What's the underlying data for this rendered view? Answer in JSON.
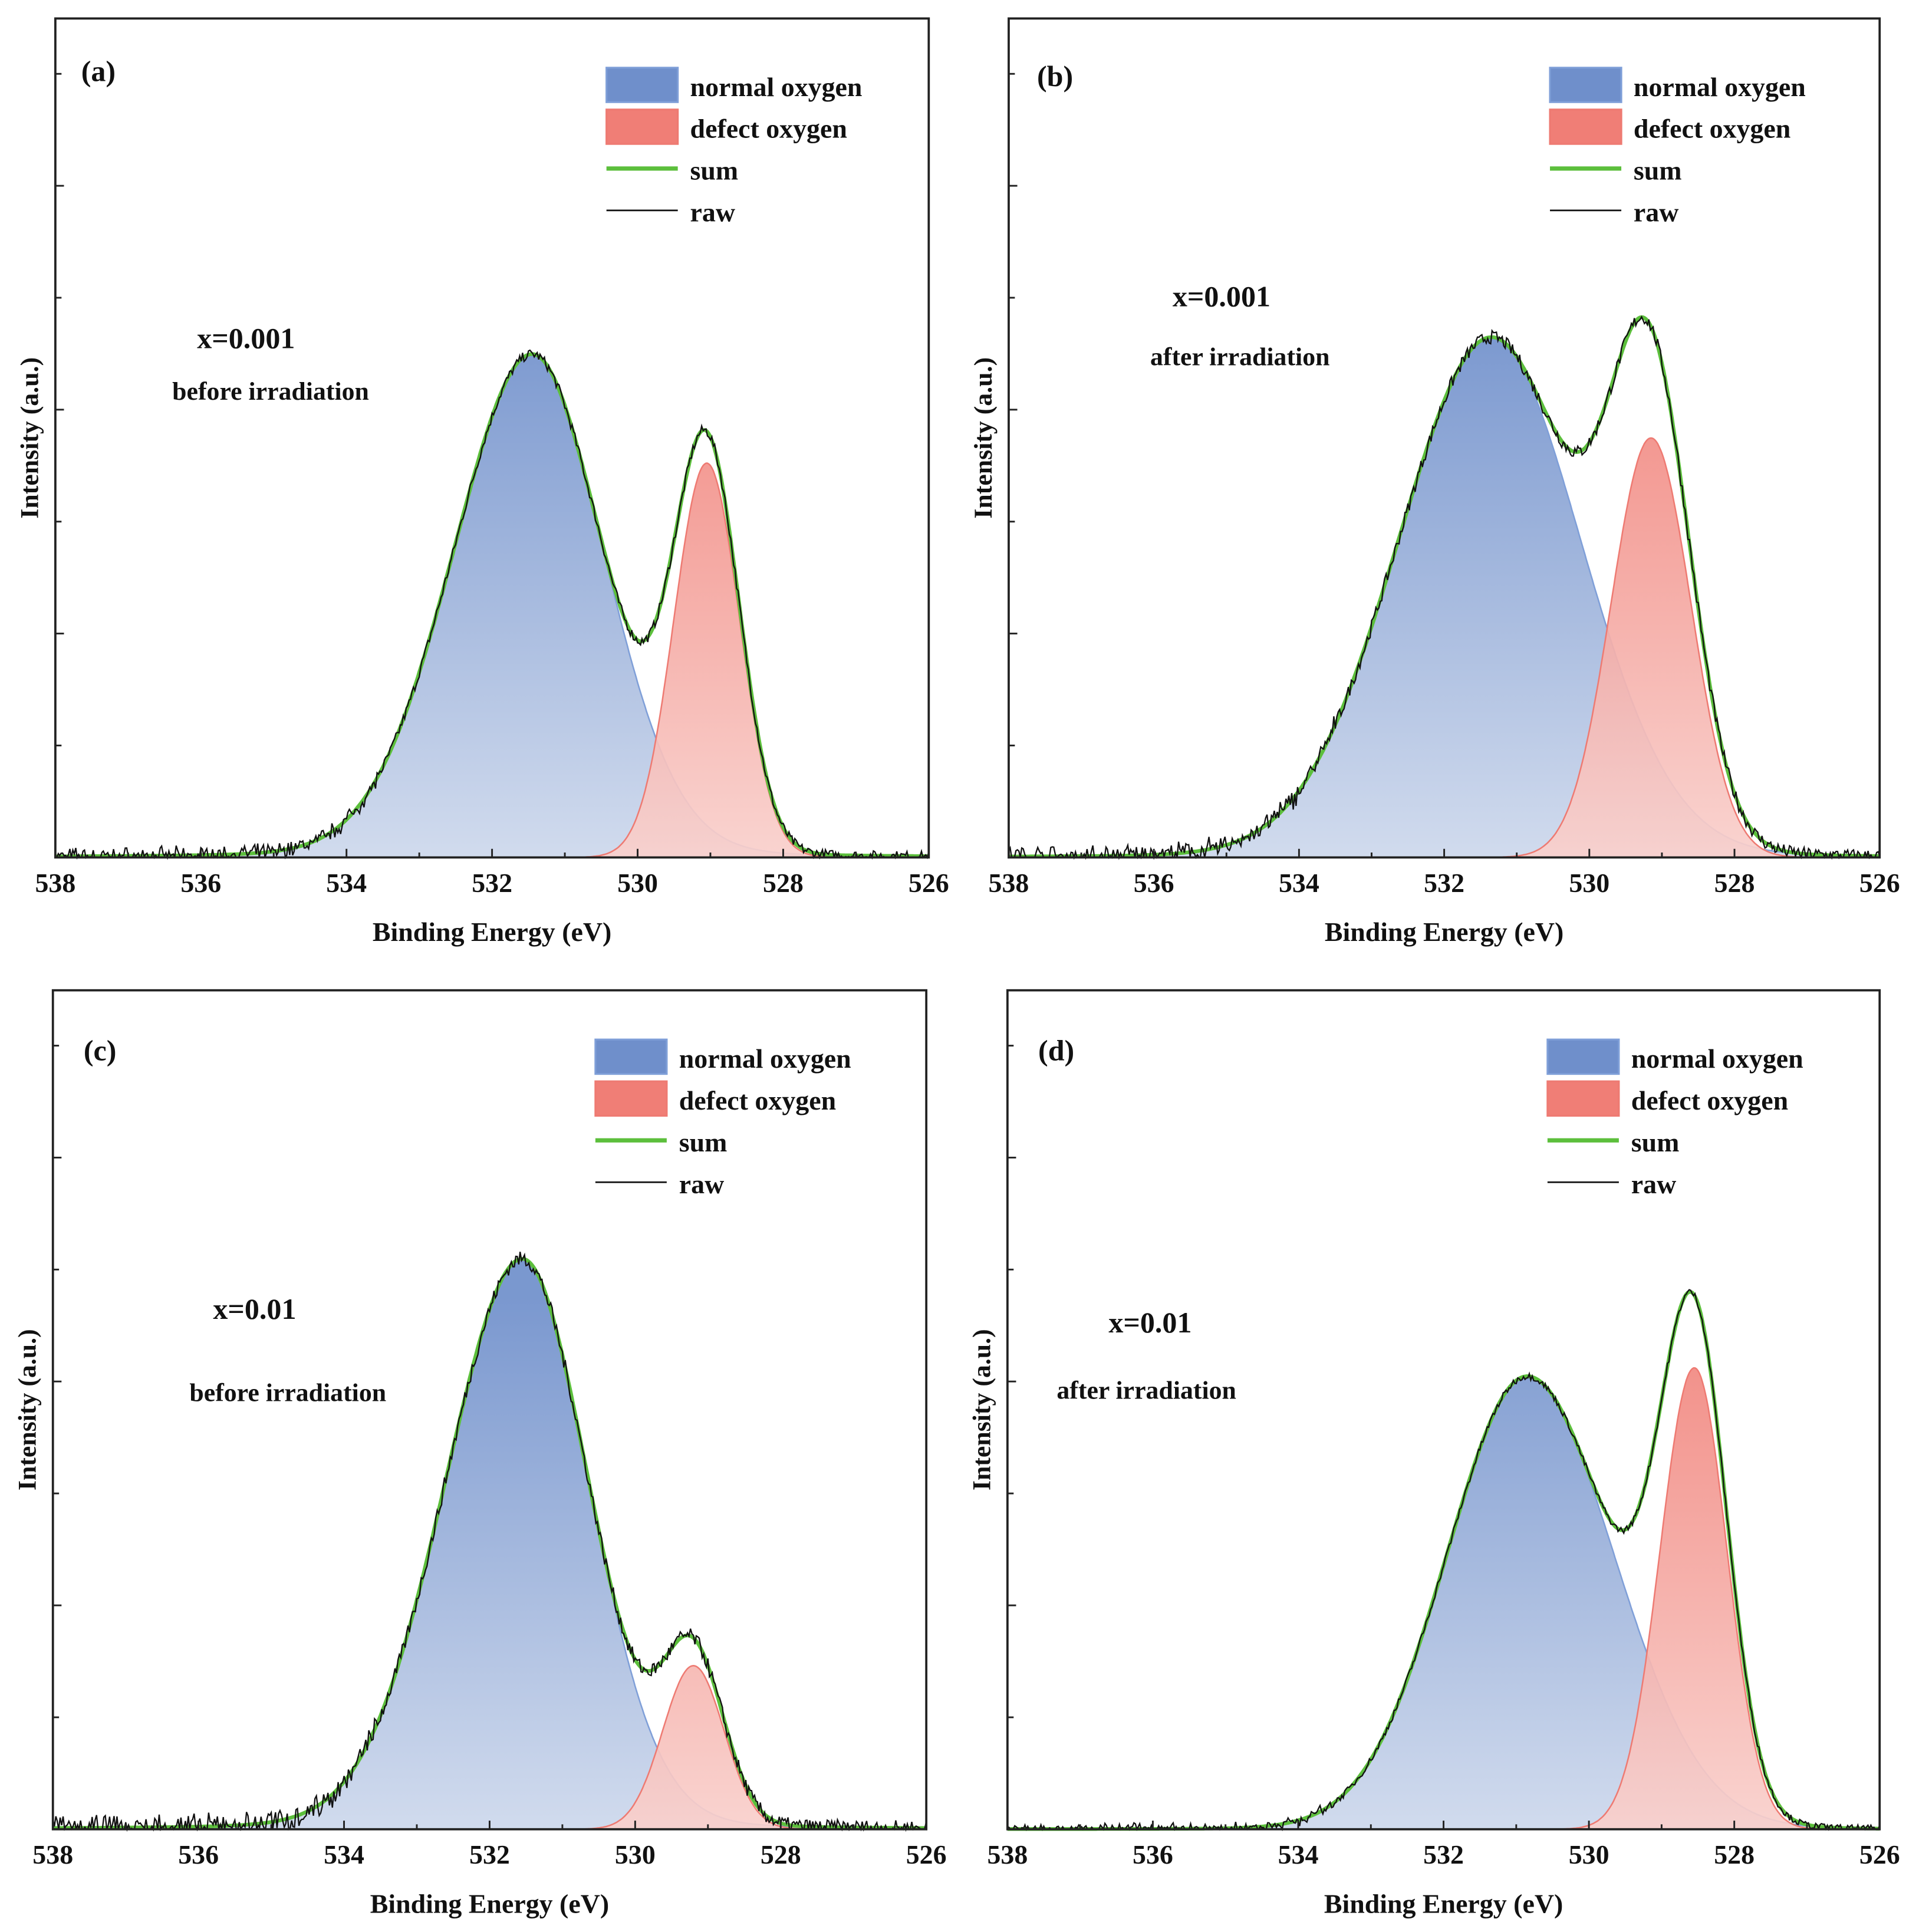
{
  "colors": {
    "normal_top": "#6f8fcb",
    "normal_bottom": "#cdd8ec",
    "normal_edge": "#7f9fd8",
    "defect_top": "#f07e76",
    "defect_bottom": "#f9d0cc",
    "defect_edge": "#ee7a72",
    "sum": "#5cbf3c",
    "raw": "#111111",
    "axis": "#222222"
  },
  "chart_data": [
    {
      "type": "area",
      "panel_label": "(a)",
      "composition": "x=0.001",
      "condition": "before irradiation",
      "xlabel": "Binding Energy (eV)",
      "ylabel": "Intensity (a.u.)",
      "xlim": [
        538,
        526
      ],
      "ylim": [
        0,
        1
      ],
      "xticks": [
        "538",
        "536",
        "534",
        "532",
        "530",
        "528",
        "526"
      ],
      "legend": [
        "normal oxygen",
        "defect oxygen",
        "sum",
        "raw"
      ],
      "legend_position": "top-right",
      "peaks": {
        "normal_oxygen": {
          "center": 531.45,
          "height": 0.6,
          "sigma_high": 1.1,
          "sigma_low": 1.0,
          "lorentz": 0.08
        },
        "defect_oxygen": {
          "center": 529.05,
          "height": 0.47,
          "sigma_high": 0.45,
          "sigma_low": 0.45,
          "lorentz": 0
        }
      },
      "raw_noise": 0.006
    },
    {
      "type": "area",
      "panel_label": "(b)",
      "composition": "x=0.001",
      "condition": "after irradiation",
      "xlabel": "Binding Energy (eV)",
      "ylabel": "Intensity (a.u.)",
      "xlim": [
        538,
        526
      ],
      "ylim": [
        0,
        1
      ],
      "xticks": [
        "538",
        "536",
        "534",
        "532",
        "530",
        "528",
        "526"
      ],
      "legend": [
        "normal oxygen",
        "defect oxygen",
        "sum",
        "raw"
      ],
      "legend_position": "top-right",
      "peaks": {
        "normal_oxygen": {
          "center": 531.35,
          "height": 0.62,
          "sigma_high": 1.3,
          "sigma_low": 1.25,
          "lorentz": 0.05
        },
        "defect_oxygen": {
          "center": 529.15,
          "height": 0.5,
          "sigma_high": 0.55,
          "sigma_low": 0.55,
          "lorentz": 0
        }
      },
      "raw_noise": 0.008
    },
    {
      "type": "area",
      "panel_label": "(c)",
      "composition": "x=0.01",
      "condition": "before irradiation",
      "xlabel": "Binding Energy (eV)",
      "ylabel": "Intensity (a.u.)",
      "xlim": [
        538,
        526
      ],
      "ylim": [
        0,
        1
      ],
      "xticks": [
        "538",
        "536",
        "534",
        "532",
        "530",
        "528",
        "526"
      ],
      "legend": [
        "normal oxygen",
        "defect oxygen",
        "sum",
        "raw"
      ],
      "legend_position": "top-right",
      "peaks": {
        "normal_oxygen": {
          "center": 531.55,
          "height": 0.68,
          "sigma_high": 1.08,
          "sigma_low": 0.93,
          "lorentz": 0.08
        },
        "defect_oxygen": {
          "center": 529.2,
          "height": 0.195,
          "sigma_high": 0.42,
          "sigma_low": 0.42,
          "lorentz": 0
        }
      },
      "raw_noise": 0.009
    },
    {
      "type": "area",
      "panel_label": "(d)",
      "composition": "x=0.01",
      "condition": "after irradiation",
      "xlabel": "Binding Energy (eV)",
      "ylabel": "Intensity (a.u.)",
      "xlim": [
        538,
        526
      ],
      "ylim": [
        0,
        1
      ],
      "xticks": [
        "538",
        "536",
        "534",
        "532",
        "530",
        "528",
        "526"
      ],
      "legend": [
        "normal oxygen",
        "defect oxygen",
        "sum",
        "raw"
      ],
      "legend_position": "top-right",
      "peaks": {
        "normal_oxygen": {
          "center": 530.85,
          "height": 0.54,
          "sigma_high": 1.11,
          "sigma_low": 1.2,
          "lorentz": 0.02
        },
        "defect_oxygen": {
          "center": 528.55,
          "height": 0.55,
          "sigma_high": 0.47,
          "sigma_low": 0.45,
          "lorentz": 0
        }
      },
      "raw_noise": 0.004
    }
  ]
}
